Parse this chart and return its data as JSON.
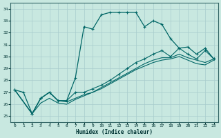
{
  "xlabel": "Humidex (Indice chaleur)",
  "xlim": [
    -0.5,
    23.5
  ],
  "ylim": [
    24.5,
    34.5
  ],
  "yticks": [
    25,
    26,
    27,
    28,
    29,
    30,
    31,
    32,
    33,
    34
  ],
  "xticks": [
    0,
    1,
    2,
    3,
    4,
    5,
    6,
    7,
    8,
    9,
    10,
    11,
    12,
    13,
    14,
    15,
    16,
    17,
    18,
    19,
    20,
    21,
    22,
    23
  ],
  "background_color": "#c8e8e0",
  "grid_color": "#a8cccc",
  "line_color": "#006666",
  "line1_x": [
    0,
    1,
    2,
    3,
    4,
    5,
    6,
    7,
    8,
    9,
    10,
    11,
    12,
    13,
    14,
    15,
    16,
    17,
    18,
    19,
    20,
    21,
    22,
    23
  ],
  "line1_y": [
    27.2,
    27.0,
    25.2,
    26.5,
    27.0,
    26.3,
    26.3,
    28.2,
    32.5,
    32.3,
    33.5,
    33.7,
    33.7,
    33.7,
    33.7,
    32.5,
    33.0,
    32.7,
    31.5,
    30.7,
    30.8,
    30.2,
    30.7,
    29.8
  ],
  "line2_x": [
    0,
    2,
    3,
    4,
    5,
    6,
    7,
    8,
    9,
    10,
    11,
    12,
    13,
    14,
    15,
    16,
    17,
    18,
    19,
    20,
    21,
    22,
    23
  ],
  "line2_y": [
    27.2,
    25.2,
    26.5,
    27.0,
    26.3,
    26.3,
    27.0,
    27.0,
    27.3,
    27.6,
    28.0,
    28.5,
    29.0,
    29.5,
    29.8,
    30.2,
    30.5,
    30.0,
    30.7,
    30.2,
    29.8,
    30.5,
    29.8
  ],
  "line3_x": [
    0,
    2,
    3,
    4,
    5,
    6,
    7,
    8,
    9,
    10,
    11,
    12,
    13,
    14,
    15,
    16,
    17,
    18,
    19,
    20,
    21,
    22,
    23
  ],
  "line3_y": [
    27.2,
    25.2,
    26.5,
    27.0,
    26.3,
    26.2,
    26.5,
    26.8,
    27.0,
    27.4,
    27.8,
    28.2,
    28.6,
    29.0,
    29.4,
    29.7,
    29.9,
    29.9,
    30.2,
    29.9,
    29.7,
    29.5,
    29.8
  ],
  "line4_x": [
    0,
    2,
    3,
    4,
    5,
    6,
    7,
    8,
    9,
    10,
    11,
    12,
    13,
    14,
    15,
    16,
    17,
    18,
    19,
    20,
    21,
    22,
    23
  ],
  "line4_y": [
    27.2,
    25.2,
    26.1,
    26.5,
    26.1,
    26.0,
    26.4,
    26.7,
    27.0,
    27.3,
    27.7,
    28.1,
    28.5,
    28.9,
    29.2,
    29.5,
    29.7,
    29.8,
    30.0,
    29.7,
    29.4,
    29.3,
    29.7
  ]
}
